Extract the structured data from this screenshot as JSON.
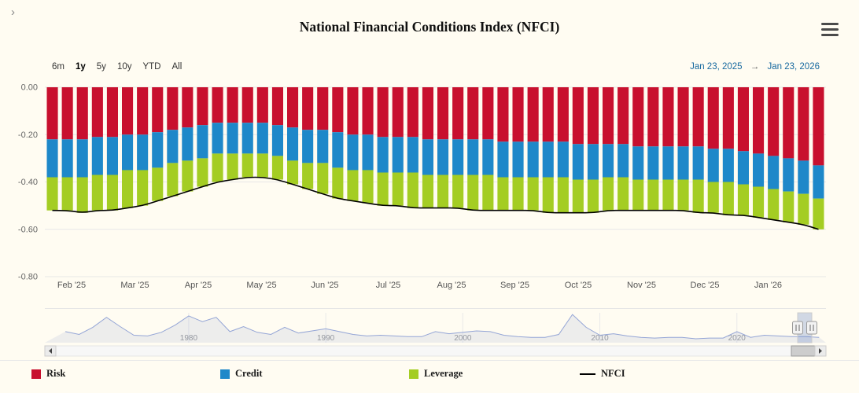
{
  "header": {
    "title": "National Financial Conditions Index (NFCI)",
    "chevron": "›"
  },
  "range_selector": {
    "buttons": [
      "6m",
      "1y",
      "5y",
      "10y",
      "YTD",
      "All"
    ],
    "selected": "1y",
    "from": "Jan 23, 2025",
    "arrow": "→",
    "to": "Jan 23, 2026"
  },
  "icons": {
    "menu": "hamburger-menu",
    "scroll_left": "left-arrow",
    "scroll_right": "right-arrow",
    "navigator_handle": "grip-handle"
  },
  "legend": [
    {
      "label": "Risk",
      "color": "#c8102e",
      "type": "box"
    },
    {
      "label": "Credit",
      "color": "#1e88c9",
      "type": "box"
    },
    {
      "label": "Leverage",
      "color": "#a4cd23",
      "type": "box"
    },
    {
      "label": "NFCI",
      "color": "#000000",
      "type": "line"
    }
  ],
  "chart_data": {
    "type": "bar",
    "subtype": "stacked-columns-with-line",
    "title": "National Financial Conditions Index (NFCI)",
    "frequency": "weekly",
    "x_range": [
      "Jan 23, 2025",
      "Jan 23, 2026"
    ],
    "y_axis": {
      "ticks": [
        0.0,
        -0.2,
        -0.4,
        -0.6,
        -0.8
      ],
      "labels": [
        "0.00",
        "-0.20",
        "-0.40",
        "-0.60",
        "-0.80"
      ],
      "ylim": [
        -0.8,
        0.0
      ],
      "grid": true
    },
    "x_axis": {
      "labels": [
        "Feb '25",
        "Mar '25",
        "Apr '25",
        "May '25",
        "Jun '25",
        "Jul '25",
        "Aug '25",
        "Sep '25",
        "Oct '25",
        "Nov '25",
        "Dec '25",
        "Jan '26"
      ]
    },
    "series": [
      {
        "name": "Risk",
        "color": "#c8102e",
        "values": [
          -0.22,
          -0.22,
          -0.22,
          -0.21,
          -0.21,
          -0.2,
          -0.2,
          -0.19,
          -0.18,
          -0.17,
          -0.16,
          -0.15,
          -0.15,
          -0.15,
          -0.15,
          -0.16,
          -0.17,
          -0.18,
          -0.18,
          -0.19,
          -0.2,
          -0.2,
          -0.21,
          -0.21,
          -0.21,
          -0.22,
          -0.22,
          -0.22,
          -0.22,
          -0.22,
          -0.23,
          -0.23,
          -0.23,
          -0.23,
          -0.23,
          -0.24,
          -0.24,
          -0.24,
          -0.24,
          -0.25,
          -0.25,
          -0.25,
          -0.25,
          -0.25,
          -0.26,
          -0.26,
          -0.27,
          -0.28,
          -0.29,
          -0.3,
          -0.31,
          -0.33
        ]
      },
      {
        "name": "Credit",
        "color": "#1e88c9",
        "values": [
          -0.16,
          -0.16,
          -0.16,
          -0.16,
          -0.16,
          -0.15,
          -0.15,
          -0.15,
          -0.14,
          -0.14,
          -0.14,
          -0.13,
          -0.13,
          -0.13,
          -0.13,
          -0.13,
          -0.14,
          -0.14,
          -0.14,
          -0.15,
          -0.15,
          -0.15,
          -0.15,
          -0.15,
          -0.15,
          -0.15,
          -0.15,
          -0.15,
          -0.15,
          -0.15,
          -0.15,
          -0.15,
          -0.15,
          -0.15,
          -0.15,
          -0.15,
          -0.15,
          -0.14,
          -0.14,
          -0.14,
          -0.14,
          -0.14,
          -0.14,
          -0.14,
          -0.14,
          -0.14,
          -0.14,
          -0.14,
          -0.14,
          -0.14,
          -0.14,
          -0.14
        ]
      },
      {
        "name": "Leverage",
        "color": "#a4cd23",
        "values": [
          -0.14,
          -0.14,
          -0.15,
          -0.15,
          -0.15,
          -0.16,
          -0.15,
          -0.14,
          -0.14,
          -0.13,
          -0.12,
          -0.12,
          -0.11,
          -0.1,
          -0.1,
          -0.1,
          -0.1,
          -0.11,
          -0.13,
          -0.13,
          -0.13,
          -0.14,
          -0.14,
          -0.14,
          -0.15,
          -0.14,
          -0.14,
          -0.14,
          -0.15,
          -0.15,
          -0.14,
          -0.14,
          -0.14,
          -0.15,
          -0.15,
          -0.14,
          -0.14,
          -0.14,
          -0.14,
          -0.13,
          -0.13,
          -0.13,
          -0.13,
          -0.14,
          -0.13,
          -0.14,
          -0.13,
          -0.13,
          -0.13,
          -0.13,
          -0.13,
          -0.13
        ]
      },
      {
        "name": "NFCI",
        "type": "line",
        "color": "#000000",
        "values": [
          -0.52,
          -0.52,
          -0.53,
          -0.52,
          -0.52,
          -0.51,
          -0.5,
          -0.48,
          -0.46,
          -0.44,
          -0.42,
          -0.4,
          -0.39,
          -0.38,
          -0.38,
          -0.39,
          -0.41,
          -0.43,
          -0.45,
          -0.47,
          -0.48,
          -0.49,
          -0.5,
          -0.5,
          -0.51,
          -0.51,
          -0.51,
          -0.51,
          -0.52,
          -0.52,
          -0.52,
          -0.52,
          -0.52,
          -0.53,
          -0.53,
          -0.53,
          -0.53,
          -0.52,
          -0.52,
          -0.52,
          -0.52,
          -0.52,
          -0.52,
          -0.53,
          -0.53,
          -0.54,
          -0.54,
          -0.55,
          -0.56,
          -0.57,
          -0.58,
          -0.6
        ]
      }
    ],
    "navigator": {
      "x_labels": [
        "1980",
        "1990",
        "2000",
        "2010",
        "2020"
      ],
      "start_year": 1971,
      "values": [
        0.2,
        -0.2,
        0.8,
        2.2,
        0.9,
        -0.3,
        -0.4,
        0.1,
        1.1,
        2.4,
        1.6,
        2.2,
        0.2,
        0.9,
        0.1,
        -0.2,
        0.8,
        0.0,
        0.3,
        0.6,
        0.2,
        -0.2,
        -0.4,
        -0.3,
        -0.4,
        -0.5,
        -0.5,
        0.2,
        -0.1,
        0.1,
        0.3,
        0.2,
        -0.3,
        -0.5,
        -0.6,
        -0.6,
        -0.2,
        2.6,
        0.8,
        -0.3,
        -0.1,
        -0.4,
        -0.6,
        -0.7,
        -0.6,
        -0.6,
        -0.8,
        -0.7,
        -0.7,
        0.2,
        -0.6,
        -0.3,
        -0.4,
        -0.5,
        -0.5,
        -0.6
      ],
      "selected_range": "last 1y"
    }
  }
}
